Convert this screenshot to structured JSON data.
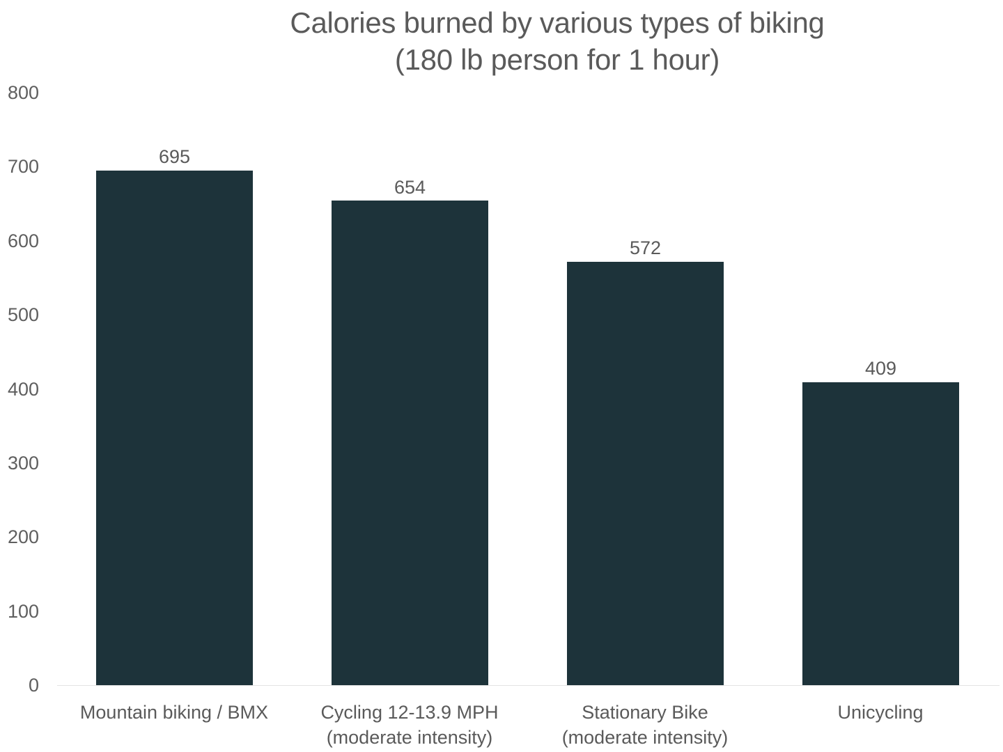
{
  "chart": {
    "title_line1": "Calories burned by various types of biking",
    "title_line2": "(180 lb person for 1 hour)",
    "bar_color": "#1d333a",
    "y_ticks": [
      "800",
      "700",
      "600",
      "500",
      "400",
      "300",
      "200",
      "100",
      "0"
    ],
    "bars": [
      {
        "label_line1": "Mountain biking / BMX",
        "label_line2": "",
        "value": 695,
        "value_label": "695"
      },
      {
        "label_line1": "Cycling 12-13.9 MPH",
        "label_line2": "(moderate intensity)",
        "value": 654,
        "value_label": "654"
      },
      {
        "label_line1": "Stationary Bike",
        "label_line2": "(moderate intensity)",
        "value": 572,
        "value_label": "572"
      },
      {
        "label_line1": "Unicycling",
        "label_line2": "",
        "value": 409,
        "value_label": "409"
      }
    ]
  },
  "chart_data": {
    "type": "bar",
    "title": "Calories burned by various types of biking (180 lb person for 1 hour)",
    "categories": [
      "Mountain biking / BMX",
      "Cycling 12-13.9 MPH (moderate intensity)",
      "Stationary Bike (moderate intensity)",
      "Unicycling"
    ],
    "values": [
      695,
      654,
      572,
      409
    ],
    "xlabel": "",
    "ylabel": "",
    "ylim": [
      0,
      800
    ],
    "yticks": [
      0,
      100,
      200,
      300,
      400,
      500,
      600,
      700,
      800
    ],
    "grid": false,
    "legend": "none",
    "data_labels": true,
    "bar_color": "#1d333a"
  }
}
